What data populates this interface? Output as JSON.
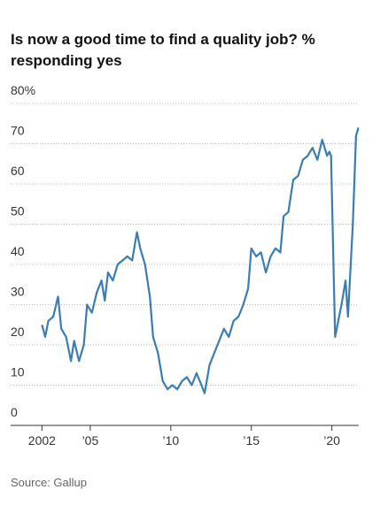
{
  "chart_data": {
    "type": "line",
    "title_lines": [
      "Is now a good time to find a quality job? %",
      "responding yes"
    ],
    "source": "Source: Gallup",
    "x": [
      2002.0,
      2002.2,
      2002.4,
      2002.7,
      2003.0,
      2003.2,
      2003.5,
      2003.8,
      2004.0,
      2004.3,
      2004.6,
      2004.8,
      2005.1,
      2005.4,
      2005.7,
      2005.9,
      2006.1,
      2006.4,
      2006.7,
      2007.0,
      2007.3,
      2007.6,
      2007.9,
      2008.1,
      2008.4,
      2008.7,
      2008.9,
      2009.2,
      2009.5,
      2009.8,
      2010.1,
      2010.4,
      2010.7,
      2011.0,
      2011.3,
      2011.6,
      2011.9,
      2012.1,
      2012.4,
      2012.7,
      2013.0,
      2013.3,
      2013.6,
      2013.9,
      2014.2,
      2014.5,
      2014.8,
      2015.0,
      2015.3,
      2015.6,
      2015.9,
      2016.2,
      2016.5,
      2016.8,
      2017.0,
      2017.3,
      2017.6,
      2017.9,
      2018.2,
      2018.5,
      2018.8,
      2019.1,
      2019.4,
      2019.7,
      2019.85,
      2019.95,
      2020.2,
      2020.6,
      2020.85,
      2021.0,
      2021.3,
      2021.5,
      2021.65
    ],
    "series": [
      {
        "name": "Yes",
        "color": "#3a7db3",
        "values": [
          25,
          22,
          26,
          27,
          32,
          24,
          22,
          16,
          21,
          16,
          20,
          30,
          28,
          33,
          36,
          31,
          38,
          36,
          40,
          41,
          42,
          41,
          48,
          44,
          40,
          32,
          22,
          18,
          11,
          9,
          10,
          9,
          11,
          12,
          10,
          13,
          10,
          8,
          15,
          18,
          21,
          24,
          22,
          26,
          27,
          30,
          34,
          44,
          42,
          43,
          38,
          42,
          44,
          43,
          52,
          53,
          61,
          62,
          66,
          67,
          69,
          66,
          71,
          67,
          68,
          67,
          22,
          30,
          36,
          27,
          50,
          72,
          74
        ]
      }
    ],
    "xlim": [
      2000,
      2022
    ],
    "xticks": [
      2002,
      {
        "value": 2005,
        "label": "’05"
      },
      {
        "value": 2010,
        "label": "’10"
      },
      {
        "value": 2015,
        "label": "’15"
      },
      {
        "value": 2020,
        "label": "’20"
      }
    ],
    "ylim": [
      0,
      80
    ],
    "yticks": [
      0,
      10,
      20,
      30,
      40,
      50,
      60,
      70,
      {
        "value": 80,
        "label": "80%"
      }
    ],
    "grid": true
  }
}
